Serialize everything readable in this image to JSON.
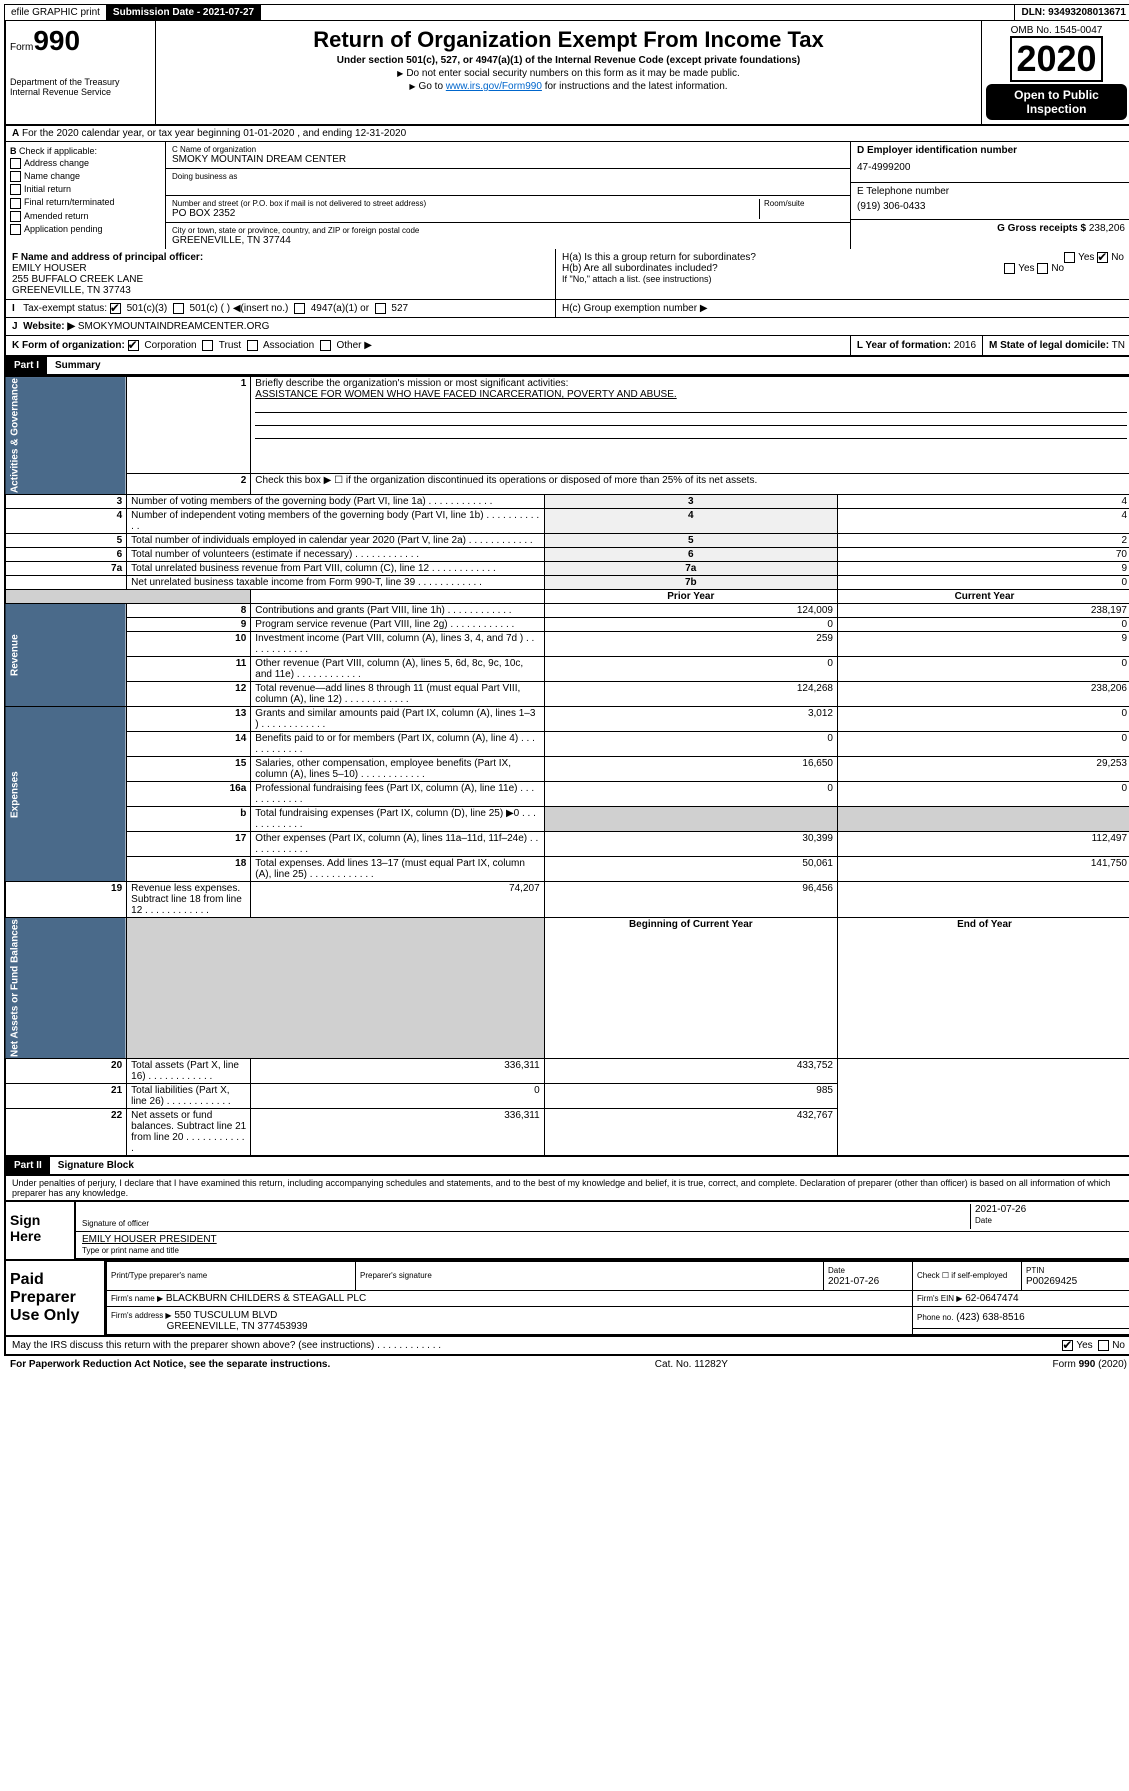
{
  "topbar": {
    "efile": "efile GRAPHIC print",
    "submission_label": "Submission Date - 2021-07-27",
    "dln": "DLN: 93493208013671"
  },
  "header": {
    "form_prefix": "Form",
    "form_number": "990",
    "dept": "Department of the Treasury\nInternal Revenue Service",
    "title": "Return of Organization Exempt From Income Tax",
    "subtitle": "Under section 501(c), 527, or 4947(a)(1) of the Internal Revenue Code (except private foundations)",
    "note1": "Do not enter social security numbers on this form as it may be made public.",
    "note2_prefix": "Go to ",
    "note2_link": "www.irs.gov/Form990",
    "note2_suffix": " for instructions and the latest information.",
    "omb": "OMB No. 1545-0047",
    "year": "2020",
    "open_public": "Open to Public Inspection"
  },
  "row_a": "For the 2020 calendar year, or tax year beginning 01-01-2020    , and ending 12-31-2020",
  "col_b": {
    "header": "Check if applicable:",
    "items": [
      "Address change",
      "Name change",
      "Initial return",
      "Final return/terminated",
      "Amended return",
      "Application pending"
    ]
  },
  "col_c": {
    "name_label": "C Name of organization",
    "name": "SMOKY MOUNTAIN DREAM CENTER",
    "dba_label": "Doing business as",
    "addr_label": "Number and street (or P.O. box if mail is not delivered to street address)",
    "room_label": "Room/suite",
    "addr": "PO BOX 2352",
    "city_label": "City or town, state or province, country, and ZIP or foreign postal code",
    "city": "GREENEVILLE, TN  37744"
  },
  "col_d": {
    "ein_label": "D Employer identification number",
    "ein": "47-4999200",
    "phone_label": "E Telephone number",
    "phone": "(919) 306-0433",
    "gross_label": "G Gross receipts $",
    "gross": "238,206"
  },
  "officer": {
    "label": "F  Name and address of principal officer:",
    "name": "EMILY HOUSER",
    "addr1": "255 BUFFALO CREEK LANE",
    "addr2": "GREENEVILLE, TN  37743"
  },
  "h_section": {
    "ha": "H(a)  Is this a group return for subordinates?",
    "hb": "H(b)  Are all subordinates included?",
    "hb_note": "If \"No,\" attach a list. (see instructions)",
    "hc": "H(c)  Group exemption number ▶"
  },
  "tax_exempt": {
    "label": "Tax-exempt status:",
    "opt1": "501(c)(3)",
    "opt2": "501(c) (  ) ◀(insert no.)",
    "opt3": "4947(a)(1) or",
    "opt4": "527"
  },
  "website": {
    "label": "Website: ▶",
    "value": "SMOKYMOUNTAINDREAMCENTER.ORG"
  },
  "form_org": {
    "label": "K Form of organization:",
    "opts": [
      "Corporation",
      "Trust",
      "Association",
      "Other ▶"
    ],
    "l_label": "L Year of formation:",
    "l_val": "2016",
    "m_label": "M State of legal domicile:",
    "m_val": "TN"
  },
  "part1": {
    "header": "Part I",
    "title": "Summary",
    "line1_label": "Briefly describe the organization's mission or most significant activities:",
    "line1_text": "ASSISTANCE FOR WOMEN WHO HAVE FACED INCARCERATION, POVERTY AND ABUSE.",
    "line2": "Check this box ▶ ☐  if the organization discontinued its operations or disposed of more than 25% of its net assets.",
    "sidebars": {
      "gov": "Activities & Governance",
      "rev": "Revenue",
      "exp": "Expenses",
      "net": "Net Assets or Fund Balances"
    },
    "rows_single": [
      {
        "n": "3",
        "text": "Number of voting members of the governing body (Part VI, line 1a)",
        "lbl": "3",
        "val": "4"
      },
      {
        "n": "4",
        "text": "Number of independent voting members of the governing body (Part VI, line 1b)",
        "lbl": "4",
        "val": "4"
      },
      {
        "n": "5",
        "text": "Total number of individuals employed in calendar year 2020 (Part V, line 2a)",
        "lbl": "5",
        "val": "2"
      },
      {
        "n": "6",
        "text": "Total number of volunteers (estimate if necessary)",
        "lbl": "6",
        "val": "70"
      },
      {
        "n": "7a",
        "text": "Total unrelated business revenue from Part VIII, column (C), line 12",
        "lbl": "7a",
        "val": "9"
      },
      {
        "n": "",
        "text": "Net unrelated business taxable income from Form 990-T, line 39",
        "lbl": "7b",
        "val": "0"
      }
    ],
    "prior_header": "Prior Year",
    "current_header": "Current Year",
    "rows_double": [
      {
        "n": "8",
        "text": "Contributions and grants (Part VIII, line 1h)",
        "prior": "124,009",
        "curr": "238,197"
      },
      {
        "n": "9",
        "text": "Program service revenue (Part VIII, line 2g)",
        "prior": "0",
        "curr": "0"
      },
      {
        "n": "10",
        "text": "Investment income (Part VIII, column (A), lines 3, 4, and 7d )",
        "prior": "259",
        "curr": "9"
      },
      {
        "n": "11",
        "text": "Other revenue (Part VIII, column (A), lines 5, 6d, 8c, 9c, 10c, and 11e)",
        "prior": "0",
        "curr": "0"
      },
      {
        "n": "12",
        "text": "Total revenue—add lines 8 through 11 (must equal Part VIII, column (A), line 12)",
        "prior": "124,268",
        "curr": "238,206"
      },
      {
        "n": "13",
        "text": "Grants and similar amounts paid (Part IX, column (A), lines 1–3 )",
        "prior": "3,012",
        "curr": "0"
      },
      {
        "n": "14",
        "text": "Benefits paid to or for members (Part IX, column (A), line 4)",
        "prior": "0",
        "curr": "0"
      },
      {
        "n": "15",
        "text": "Salaries, other compensation, employee benefits (Part IX, column (A), lines 5–10)",
        "prior": "16,650",
        "curr": "29,253"
      },
      {
        "n": "16a",
        "text": "Professional fundraising fees (Part IX, column (A), line 11e)",
        "prior": "0",
        "curr": "0"
      },
      {
        "n": "b",
        "text": "Total fundraising expenses (Part IX, column (D), line 25) ▶0",
        "prior": "",
        "curr": "",
        "shaded": true
      },
      {
        "n": "17",
        "text": "Other expenses (Part IX, column (A), lines 11a–11d, 11f–24e)",
        "prior": "30,399",
        "curr": "112,497"
      },
      {
        "n": "18",
        "text": "Total expenses. Add lines 13–17 (must equal Part IX, column (A), line 25)",
        "prior": "50,061",
        "curr": "141,750"
      },
      {
        "n": "19",
        "text": "Revenue less expenses. Subtract line 18 from line 12",
        "prior": "74,207",
        "curr": "96,456"
      }
    ],
    "begin_header": "Beginning of Current Year",
    "end_header": "End of Year",
    "rows_net": [
      {
        "n": "20",
        "text": "Total assets (Part X, line 16)",
        "prior": "336,311",
        "curr": "433,752"
      },
      {
        "n": "21",
        "text": "Total liabilities (Part X, line 26)",
        "prior": "0",
        "curr": "985"
      },
      {
        "n": "22",
        "text": "Net assets or fund balances. Subtract line 21 from line 20",
        "prior": "336,311",
        "curr": "432,767"
      }
    ]
  },
  "part2": {
    "header": "Part II",
    "title": "Signature Block",
    "perjury": "Under penalties of perjury, I declare that I have examined this return, including accompanying schedules and statements, and to the best of my knowledge and belief, it is true, correct, and complete. Declaration of preparer (other than officer) is based on all information of which preparer has any knowledge."
  },
  "sign": {
    "left": "Sign Here",
    "sig_label": "Signature of officer",
    "date": "2021-07-26",
    "date_label": "Date",
    "name": "EMILY HOUSER  PRESIDENT",
    "name_label": "Type or print name and title"
  },
  "paid": {
    "left": "Paid Preparer Use Only",
    "print_label": "Print/Type preparer's name",
    "sig_label": "Preparer's signature",
    "date_label": "Date",
    "date": "2021-07-26",
    "check_label": "Check ☐ if self-employed",
    "ptin_label": "PTIN",
    "ptin": "P00269425",
    "firm_name_label": "Firm's name    ▶",
    "firm_name": "BLACKBURN CHILDERS & STEAGALL PLC",
    "firm_ein_label": "Firm's EIN ▶",
    "firm_ein": "62-0647474",
    "firm_addr_label": "Firm's address ▶",
    "firm_addr1": "550 TUSCULUM BLVD",
    "firm_addr2": "GREENEVILLE, TN  377453939",
    "phone_label": "Phone no.",
    "phone": "(423) 638-8516"
  },
  "footer": {
    "discuss": "May the IRS discuss this return with the preparer shown above? (see instructions)",
    "paperwork": "For Paperwork Reduction Act Notice, see the separate instructions.",
    "cat": "Cat. No. 11282Y",
    "form": "Form 990 (2020)"
  }
}
